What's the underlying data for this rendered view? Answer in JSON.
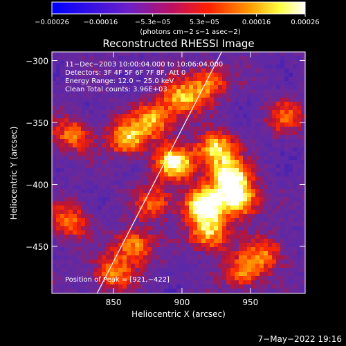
{
  "chart_data": {
    "type": "heatmap",
    "title": "Reconstructed RHESSI Image",
    "xlabel": "Heliocentric X (arcsec)",
    "ylabel": "Heliocentric Y (arcsec)",
    "xlim": [
      805,
      990
    ],
    "ylim": [
      -488,
      -293
    ],
    "x_ticks": [
      "850",
      "900",
      "950"
    ],
    "x_tick_values": [
      850,
      900,
      950
    ],
    "y_ticks": [
      "−300",
      "−350",
      "−400",
      "−450"
    ],
    "y_tick_values": [
      -300,
      -350,
      -400,
      -450
    ],
    "colorbar": {
      "range": [
        -0.00026,
        0.00026
      ],
      "tick_labels": [
        "−0.00026",
        "−0.00016",
        "−5.3e−05",
        "5.3e−05",
        "0.00016",
        "0.00026"
      ],
      "tick_values": [
        -0.00026,
        -0.00016,
        -5.3e-05,
        5.3e-05,
        0.00016,
        0.00026
      ],
      "units_label": "(photons cm−2 s−1 asec−2)",
      "colors": [
        "#0000ff",
        "#7a30c0",
        "#ff0000",
        "#ffaa00",
        "#ffff40",
        "#ffffff"
      ]
    },
    "annotations": [
      "11−Dec−2003 10:00:04.000 to 10:06:04.000",
      "Detectors: 3F 4F 5F 6F 7F 8F, Att 0",
      "Energy Range: 12.0 − 25.0 keV",
      "Clean    Total counts: 3.96E+03"
    ],
    "peak_label": "Position of Peak = [921,−422]",
    "peak": [
      921,
      -422
    ],
    "limb_line": [
      [
        838,
        -488
      ],
      [
        929,
        -293
      ]
    ],
    "bright_regions": [
      {
        "x": 916,
        "y": -417,
        "level": 1.0
      },
      {
        "x": 935,
        "y": -395,
        "level": 0.95
      },
      {
        "x": 925,
        "y": -372,
        "level": 0.85
      },
      {
        "x": 895,
        "y": -383,
        "level": 0.9
      },
      {
        "x": 942,
        "y": -413,
        "level": 0.85
      },
      {
        "x": 860,
        "y": -363,
        "level": 0.75
      },
      {
        "x": 880,
        "y": -348,
        "level": 0.7
      },
      {
        "x": 900,
        "y": -330,
        "level": 0.7
      },
      {
        "x": 920,
        "y": -318,
        "level": 0.6
      },
      {
        "x": 865,
        "y": -450,
        "level": 0.65
      },
      {
        "x": 850,
        "y": -472,
        "level": 0.6
      },
      {
        "x": 920,
        "y": -440,
        "level": 0.75
      },
      {
        "x": 945,
        "y": -470,
        "level": 0.6
      },
      {
        "x": 820,
        "y": -360,
        "level": 0.55
      },
      {
        "x": 818,
        "y": -430,
        "level": 0.55
      },
      {
        "x": 962,
        "y": -455,
        "level": 0.5
      },
      {
        "x": 975,
        "y": -345,
        "level": 0.45
      },
      {
        "x": 880,
        "y": -415,
        "level": 0.55
      }
    ]
  },
  "footer": {
    "timestamp": "7−May−2022 19:16"
  }
}
